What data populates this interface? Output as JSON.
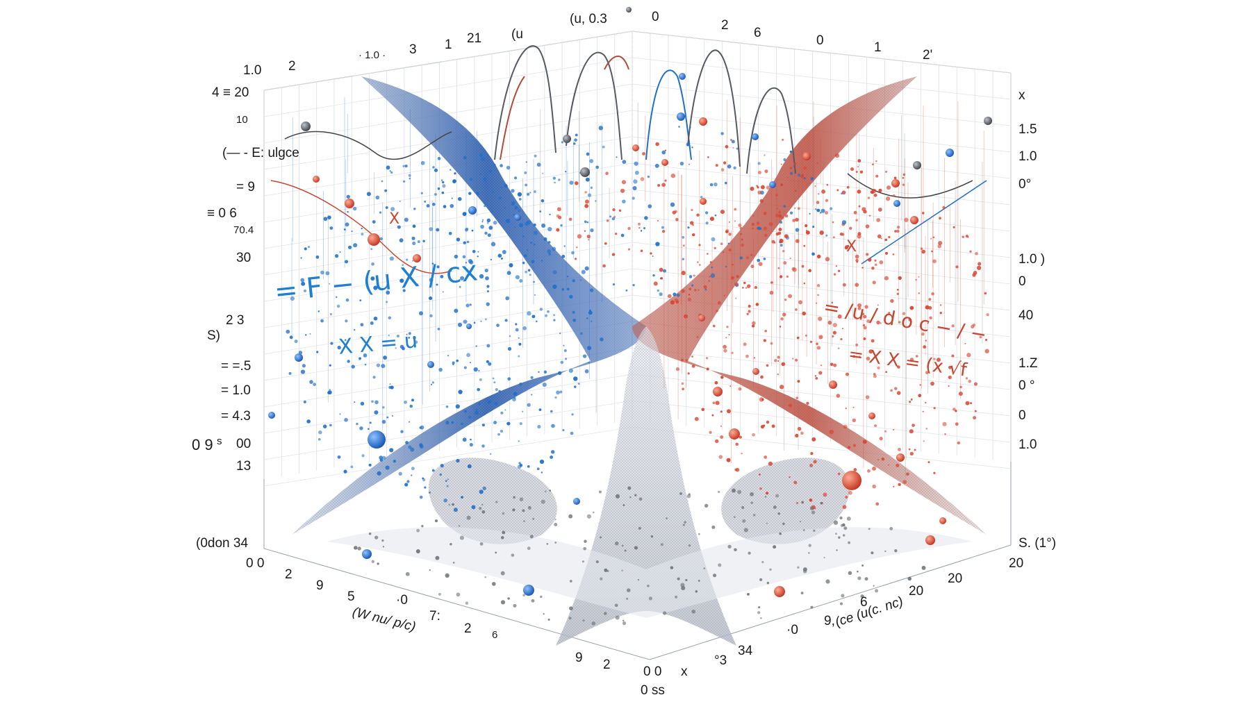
{
  "chart_data": {
    "type": "scatter",
    "axis_labels": {
      "left_axis": [
        "1.0",
        "2",
        "4 ≡ 20",
        "10",
        "(— - E: ulgce",
        "= 9",
        "≡ 0 6",
        "70.4",
        "30",
        "S)",
        "2 3",
        "= =.5",
        "= 1.0",
        "= 4.3",
        "0 9",
        "s",
        "00",
        "13",
        "(0don 34"
      ],
      "right_axis": [
        "x",
        "1.5",
        "1.0",
        "0°",
        "1.0 )",
        "0",
        "40",
        "1.Z",
        "0 °",
        "0",
        "1.0",
        "S. (1°)"
      ],
      "top_axis": [
        "· 1.0 ·",
        "3",
        "1",
        "21",
        "(u",
        "(u, 0.3",
        "0",
        "2",
        "6",
        "0",
        "1",
        "2'"
      ],
      "bottom_left_axis": [
        "0 0",
        "2",
        "9",
        "5",
        "·0",
        "7:",
        "2",
        "6",
        "9",
        "2",
        "0 0",
        "(W nu/ p/c)"
      ],
      "bottom_right_axis": [
        "x",
        "°3",
        "34",
        "·0",
        "9,",
        "6",
        "20",
        "20",
        "20",
        "(ce (u(c. nc)"
      ],
      "corner": "0 ss"
    },
    "equations": {
      "left_main": "= F − (u  X / cx",
      "left_second": "X  X = u",
      "right_main": "= /u /  d  o c − / −",
      "right_second": "= X  X = (x  √f",
      "top_left_note": "(— - E: ulgce",
      "left_marker": "X",
      "right_marker": "X"
    },
    "series": [
      {
        "name": "blue",
        "color": "#1f6fc9"
      },
      {
        "name": "red",
        "color": "#d9432e"
      },
      {
        "name": "gray",
        "color": "#6f7378"
      }
    ],
    "surface_colors": {
      "left": "#2f6fc4",
      "center": "#c9ccd3",
      "right": "#d25a43"
    },
    "grid": true
  }
}
